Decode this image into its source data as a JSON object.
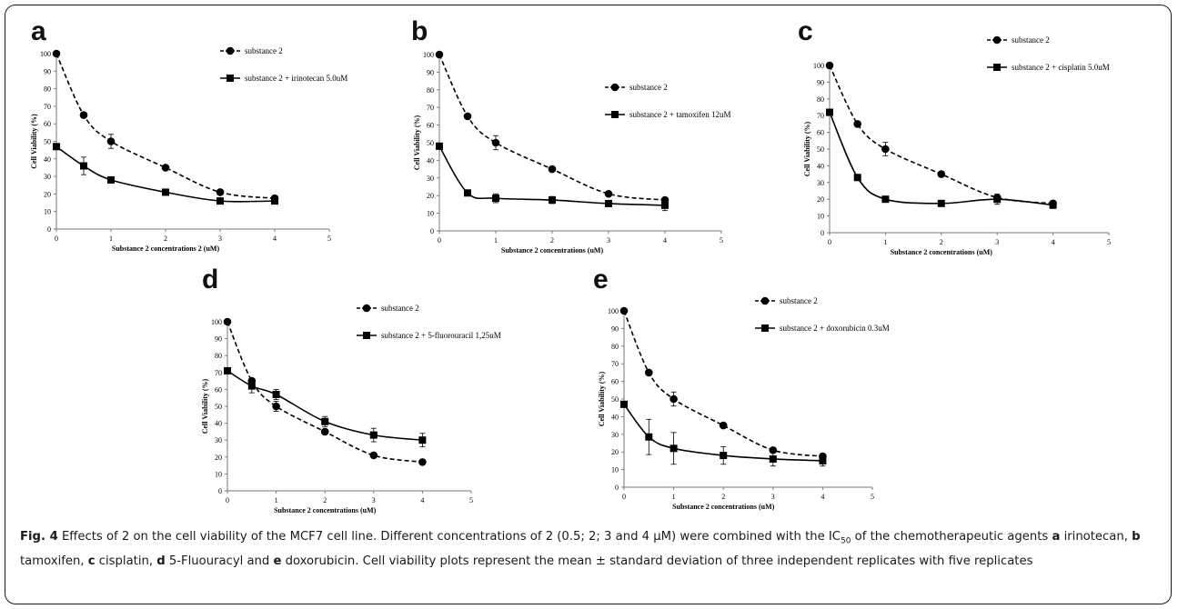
{
  "figure": {
    "caption": {
      "label": "Fig. 4",
      "lead": " Effects of 2 on the cell viability of the MCF7 cell line. Different concentrations of 2 (0.5; 2; 3 and 4 μM) were combined with the IC",
      "sub": "50",
      "mid": " of the chemotherapeutic agents ",
      "agents": [
        {
          "letter": "a",
          "name": " irinotecan, "
        },
        {
          "letter": "b",
          "name": " tamoxifen, "
        },
        {
          "letter": "c",
          "name": " cisplatin, "
        },
        {
          "letter": "d",
          "name": " 5-Fluouracyl and "
        },
        {
          "letter": "e",
          "name": " doxorubicin."
        }
      ],
      "tail": " Cell viability plots represent the mean ± standard deviation of three independent replicates with five replicates"
    }
  },
  "chart_data": [
    {
      "panel": "a",
      "type": "line",
      "ylabel": "Cell Viability (%)",
      "xlabel": "Substance 2 concentrations  2 (uM)",
      "xlim": [
        0,
        5
      ],
      "ylim": [
        0,
        100
      ],
      "xticks": [
        0,
        1,
        2,
        3,
        4,
        5
      ],
      "yticks": [
        0,
        10,
        20,
        30,
        40,
        50,
        60,
        70,
        80,
        90,
        100
      ],
      "legend": "right",
      "series": [
        {
          "name": "substance 2",
          "marker": "circle",
          "dash": true,
          "x": [
            0,
            0.5,
            1,
            2,
            3,
            4
          ],
          "y": [
            100,
            65,
            50,
            35,
            21,
            17.5
          ],
          "err": [
            0,
            0,
            4,
            0,
            0,
            0
          ]
        },
        {
          "name": "substance 2 + irinotecan 5.0uM",
          "marker": "square",
          "dash": false,
          "x": [
            0,
            0.5,
            1,
            2,
            3,
            4
          ],
          "y": [
            47,
            36,
            28,
            21,
            16,
            16
          ],
          "err": [
            0,
            5,
            1.5,
            0,
            0,
            0
          ]
        }
      ]
    },
    {
      "panel": "b",
      "type": "line",
      "ylabel": "Cell Viability  (%)",
      "xlabel": "Substance  2 concentrations  (uM)",
      "xlim": [
        0,
        5
      ],
      "ylim": [
        0,
        100
      ],
      "xticks": [
        0,
        1,
        2,
        3,
        4,
        5
      ],
      "yticks": [
        0,
        10,
        20,
        30,
        40,
        50,
        60,
        70,
        80,
        90,
        100
      ],
      "legend": "right",
      "series": [
        {
          "name": "substance 2",
          "marker": "circle",
          "dash": true,
          "x": [
            0,
            0.5,
            1,
            2,
            3,
            4
          ],
          "y": [
            100,
            65,
            50,
            35,
            21,
            17.5
          ],
          "err": [
            0,
            0,
            4,
            0,
            0,
            0
          ]
        },
        {
          "name": "substance 2 + tamoxifen 12uM",
          "marker": "square",
          "dash": false,
          "x": [
            0,
            0.5,
            1,
            2,
            3,
            4
          ],
          "y": [
            48,
            21.5,
            18.5,
            17.5,
            15.5,
            14.5
          ],
          "err": [
            0,
            0,
            2.5,
            2,
            1.5,
            3
          ]
        }
      ]
    },
    {
      "panel": "c",
      "type": "line",
      "ylabel": "Cell Viability  (%)",
      "xlabel": "Substance 2 concentrations   (uM)",
      "xlim": [
        0,
        5
      ],
      "ylim": [
        0,
        100
      ],
      "xticks": [
        0,
        1,
        2,
        3,
        4,
        5
      ],
      "yticks": [
        0,
        10,
        20,
        30,
        40,
        50,
        60,
        70,
        80,
        90,
        100
      ],
      "legend": "right",
      "series": [
        {
          "name": "substance 2",
          "marker": "circle",
          "dash": true,
          "x": [
            0,
            0.5,
            1,
            2,
            3,
            4
          ],
          "y": [
            100,
            65,
            50,
            35,
            21,
            17.5
          ],
          "err": [
            0,
            0,
            4,
            0,
            0,
            0
          ]
        },
        {
          "name": "substance 2 + cisplatin 5.0uM",
          "marker": "square",
          "dash": false,
          "x": [
            0,
            0.5,
            1,
            2,
            3,
            4
          ],
          "y": [
            72,
            33,
            20,
            17.5,
            20,
            16.5
          ],
          "err": [
            0,
            0,
            0,
            0,
            3,
            2
          ]
        }
      ]
    },
    {
      "panel": "d",
      "type": "line",
      "ylabel": "Cell Viability  (%)",
      "xlabel": "Substance  2 concentrations  (uM)",
      "xlim": [
        0,
        5
      ],
      "ylim": [
        0,
        100
      ],
      "xticks": [
        0,
        1,
        2,
        3,
        4,
        5
      ],
      "yticks": [
        0,
        10,
        20,
        30,
        40,
        50,
        60,
        70,
        80,
        90,
        100
      ],
      "legend": "right",
      "series": [
        {
          "name": "substance 2",
          "marker": "circle",
          "dash": true,
          "x": [
            0,
            0.5,
            1,
            2,
            3,
            4
          ],
          "y": [
            100,
            65,
            50,
            35,
            21,
            17
          ],
          "err": [
            0,
            0,
            3,
            0,
            0,
            0
          ]
        },
        {
          "name": "substance 2 + 5-fluorouracil 1,25uM",
          "marker": "square",
          "dash": false,
          "x": [
            0,
            0.5,
            1,
            2,
            3,
            4
          ],
          "y": [
            71,
            62,
            57,
            41,
            33,
            30
          ],
          "err": [
            0,
            4,
            3,
            3,
            4,
            4
          ]
        }
      ]
    },
    {
      "panel": "e",
      "type": "line",
      "ylabel": "Cell Viability  (%)",
      "xlabel": "Substance  2 concentrations  (uM)",
      "xlim": [
        0,
        5
      ],
      "ylim": [
        0,
        100
      ],
      "xticks": [
        0,
        1,
        2,
        3,
        4,
        5
      ],
      "yticks": [
        0,
        10,
        20,
        30,
        40,
        50,
        60,
        70,
        80,
        90,
        100
      ],
      "legend": "right",
      "series": [
        {
          "name": "substance 2",
          "marker": "circle",
          "dash": true,
          "x": [
            0,
            0.5,
            1,
            2,
            3,
            4
          ],
          "y": [
            100,
            65,
            50,
            35,
            21,
            17.5
          ],
          "err": [
            0,
            0,
            4,
            0,
            0,
            0
          ]
        },
        {
          "name": "substance 2 + doxorubicin 0.3uM",
          "marker": "square",
          "dash": false,
          "x": [
            0,
            0.5,
            1,
            2,
            3,
            4
          ],
          "y": [
            47,
            28.5,
            22,
            18,
            16,
            15
          ],
          "err": [
            0,
            10,
            9,
            5,
            4,
            3
          ]
        }
      ]
    }
  ]
}
